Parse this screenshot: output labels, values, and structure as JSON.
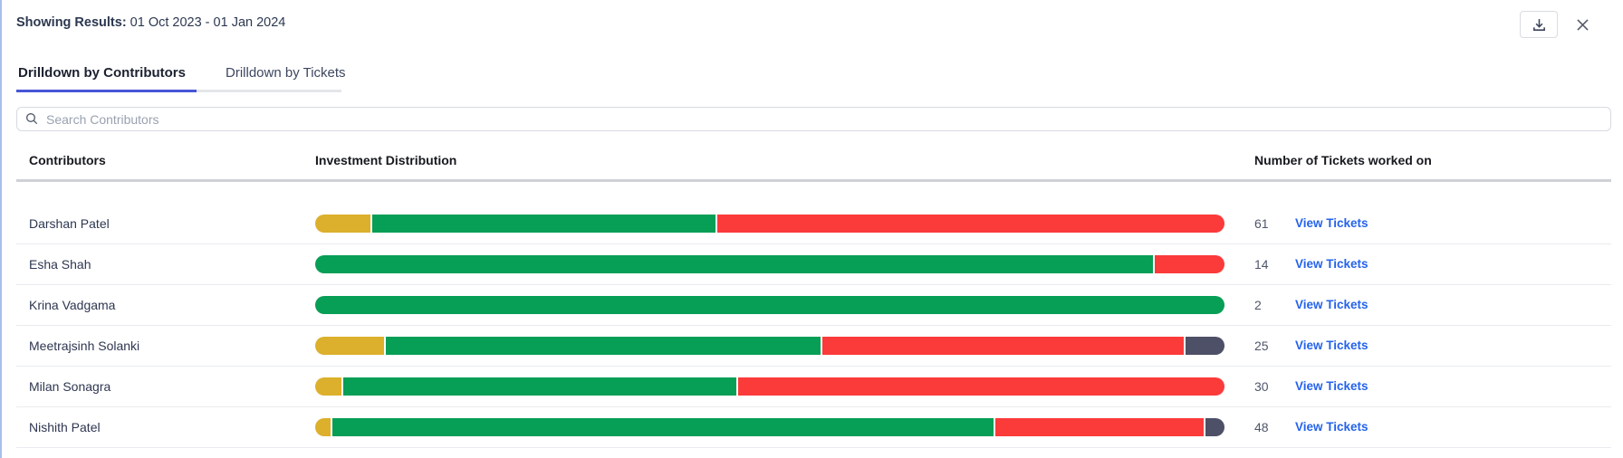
{
  "header": {
    "label": "Showing Results:",
    "date_range": "01 Oct 2023 - 01 Jan 2024"
  },
  "toolbar": {
    "download_icon": "download-tray-icon",
    "close_icon": "close-x-icon"
  },
  "tabs": {
    "contributors": "Drilldown by Contributors",
    "tickets": "Drilldown by Tickets",
    "active": "Drilldown by Contributors"
  },
  "search": {
    "placeholder": "Search Contributors",
    "value": "",
    "icon": "search-icon"
  },
  "table": {
    "columns": {
      "contributors": "Contributors",
      "distribution": "Investment Distribution",
      "tickets": "Number of Tickets worked on"
    },
    "rows": [
      {
        "name": "Darshan Patel",
        "segments": [
          {
            "color": "yellow",
            "pct": 6.1
          },
          {
            "color": "green",
            "pct": 37.9
          },
          {
            "color": "red",
            "pct": 56.0
          }
        ],
        "tickets": "61",
        "link": "View Tickets"
      },
      {
        "name": "Esha Shah",
        "segments": [
          {
            "color": "green",
            "pct": 92.3
          },
          {
            "color": "red",
            "pct": 7.7
          }
        ],
        "tickets": "14",
        "link": "View Tickets"
      },
      {
        "name": "Krina Vadgama",
        "segments": [
          {
            "color": "green",
            "pct": 100
          }
        ],
        "tickets": "2",
        "link": "View Tickets"
      },
      {
        "name": "Meetrajsinh Solanki",
        "segments": [
          {
            "color": "yellow",
            "pct": 7.6
          },
          {
            "color": "green",
            "pct": 48.1
          },
          {
            "color": "red",
            "pct": 40.0
          },
          {
            "color": "slate",
            "pct": 4.3
          }
        ],
        "tickets": "25",
        "link": "View Tickets"
      },
      {
        "name": "Milan Sonagra",
        "segments": [
          {
            "color": "yellow",
            "pct": 2.9
          },
          {
            "color": "green",
            "pct": 43.4
          },
          {
            "color": "red",
            "pct": 53.7
          }
        ],
        "tickets": "30",
        "link": "View Tickets"
      },
      {
        "name": "Nishith Patel",
        "segments": [
          {
            "color": "yellow",
            "pct": 1.7
          },
          {
            "color": "green",
            "pct": 73.1
          },
          {
            "color": "red",
            "pct": 23.1
          },
          {
            "color": "slate",
            "pct": 2.1
          }
        ],
        "tickets": "48",
        "link": "View Tickets"
      }
    ]
  },
  "colors": {
    "yellow": "#dcb02c",
    "green": "#079e56",
    "red": "#fb3a3a",
    "slate": "#4d5066",
    "tab_indicator": "#4756d6",
    "link_blue": "#2563eb",
    "left_edge": "#a9bfe8"
  }
}
